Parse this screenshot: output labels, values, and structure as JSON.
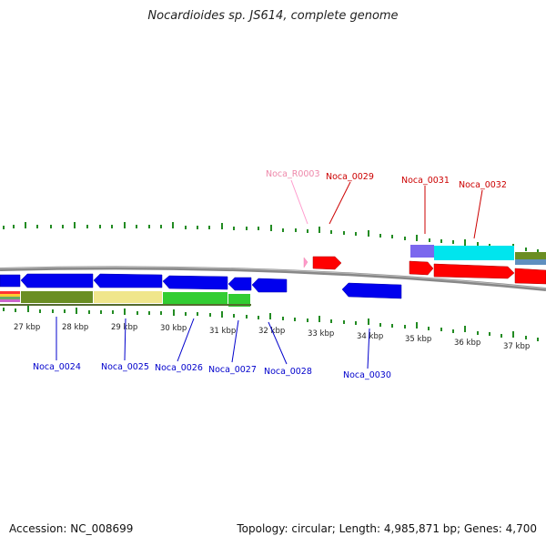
{
  "title": "Nocardioides sp. JS614, complete genome",
  "footer": {
    "accession": "Accession: NC_008699",
    "topology": "Topology: circular; Length: 4,985,871 bp; Genes: 4,700"
  },
  "colors": {
    "forward_cds": "#ff0000",
    "reverse_cds": "#0000ee",
    "rna": "#ff99cc",
    "backbone": "#888888",
    "tick": "#228b22",
    "label_forward": "#cc0000",
    "label_reverse": "#0000cc",
    "label_rna": "#ee88aa"
  },
  "scale": {
    "unit": "kbp",
    "ticks": [
      "27 kbp",
      "28 kbp",
      "29 kbp",
      "30 kbp",
      "31 kbp",
      "32 kbp",
      "33 kbp",
      "34 kbp",
      "35 kbp",
      "36 kbp",
      "37 kbp"
    ]
  },
  "genes": [
    {
      "name": "Noca_0024",
      "strand": "reverse"
    },
    {
      "name": "Noca_0025",
      "strand": "reverse"
    },
    {
      "name": "Noca_0026",
      "strand": "reverse"
    },
    {
      "name": "Noca_0027",
      "strand": "reverse"
    },
    {
      "name": "Noca_0028",
      "strand": "reverse"
    },
    {
      "name": "Noca_R0003",
      "strand": "forward",
      "type": "rna"
    },
    {
      "name": "Noca_0029",
      "strand": "forward"
    },
    {
      "name": "Noca_0030",
      "strand": "reverse"
    },
    {
      "name": "Noca_0031",
      "strand": "forward"
    },
    {
      "name": "Noca_0032",
      "strand": "forward"
    }
  ]
}
